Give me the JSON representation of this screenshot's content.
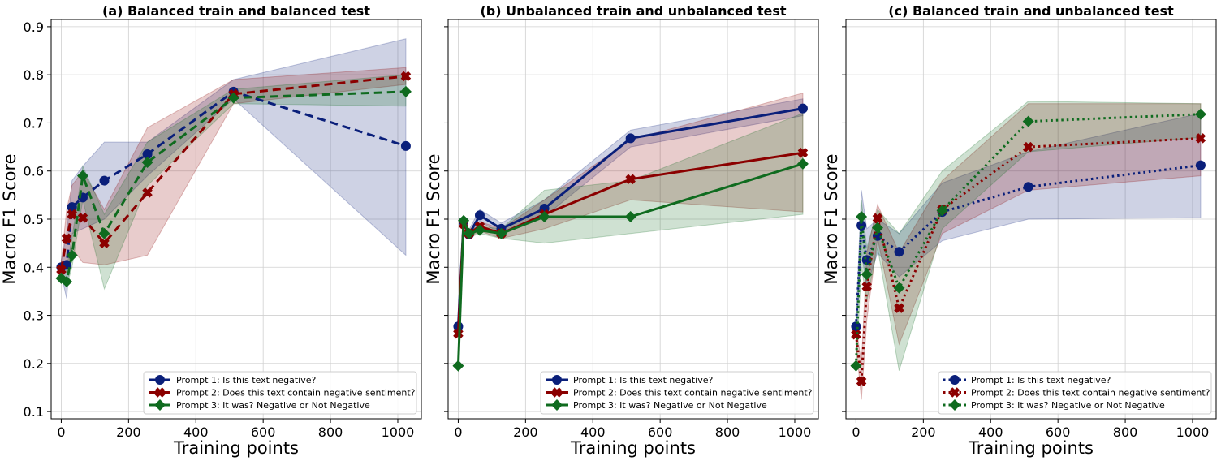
{
  "chart_data": [
    {
      "type": "line",
      "title": "(a) Balanced train and balanced test",
      "xlabel": "Training points",
      "ylabel": "Macro F1 Score",
      "line_style": "dashed",
      "xlim": [
        -30,
        1070
      ],
      "ylim": [
        0.085,
        0.915
      ],
      "xticks": [
        0,
        200,
        400,
        600,
        800,
        1000
      ],
      "yticks": [
        0.1,
        0.2,
        0.3,
        0.4,
        0.5,
        0.6,
        0.7,
        0.8,
        0.9
      ],
      "grid": true,
      "legend_position": "lower-right",
      "x": [
        0,
        16,
        32,
        64,
        128,
        256,
        512,
        1024
      ],
      "series": [
        {
          "name": "Prompt 1: Is this text negative?",
          "color": "#0a1f7a",
          "marker": "circle",
          "values": [
            0.4,
            0.405,
            0.525,
            0.545,
            0.58,
            0.635,
            0.765,
            0.652
          ],
          "lower": [
            0.385,
            0.335,
            0.47,
            0.48,
            0.5,
            0.59,
            0.75,
            0.425
          ],
          "upper": [
            0.415,
            0.47,
            0.58,
            0.61,
            0.66,
            0.66,
            0.79,
            0.875
          ]
        },
        {
          "name": "Prompt 2: Does this text contain negative sentiment?",
          "color": "#8b0000",
          "marker": "x",
          "values": [
            0.395,
            0.46,
            0.51,
            0.503,
            0.45,
            0.555,
            0.76,
            0.797
          ],
          "lower": [
            0.385,
            0.39,
            0.44,
            0.41,
            0.405,
            0.425,
            0.74,
            0.78
          ],
          "upper": [
            0.41,
            0.52,
            0.57,
            0.6,
            0.52,
            0.69,
            0.79,
            0.815
          ]
        },
        {
          "name": "Prompt 3: It was? Negative or Not Negative",
          "color": "#0f6b1f",
          "marker": "diamond",
          "values": [
            0.377,
            0.37,
            0.425,
            0.59,
            0.47,
            0.618,
            0.752,
            0.765
          ],
          "lower": [
            0.37,
            0.36,
            0.4,
            0.54,
            0.355,
            0.57,
            0.74,
            0.735
          ],
          "upper": [
            0.39,
            0.4,
            0.46,
            0.61,
            0.51,
            0.66,
            0.77,
            0.8
          ]
        }
      ]
    },
    {
      "type": "line",
      "title": "(b) Unbalanced train and unbalanced test",
      "xlabel": "Training points",
      "ylabel": "Macro F1 Score",
      "line_style": "solid",
      "xlim": [
        -30,
        1070
      ],
      "ylim": [
        0.085,
        0.915
      ],
      "xticks": [
        0,
        200,
        400,
        600,
        800,
        1000
      ],
      "yticks": [
        0.1,
        0.2,
        0.3,
        0.4,
        0.5,
        0.6,
        0.7,
        0.8,
        0.9
      ],
      "grid": true,
      "legend_position": "lower-right",
      "x": [
        0,
        16,
        32,
        64,
        128,
        256,
        512,
        1024
      ],
      "series": [
        {
          "name": "Prompt 1: Is this text negative?",
          "color": "#0a1f7a",
          "marker": "circle",
          "values": [
            0.277,
            0.495,
            0.468,
            0.508,
            0.48,
            0.522,
            0.668,
            0.73
          ],
          "lower": [
            0.27,
            0.485,
            0.46,
            0.495,
            0.47,
            0.505,
            0.65,
            0.715
          ],
          "upper": [
            0.285,
            0.505,
            0.478,
            0.52,
            0.492,
            0.54,
            0.685,
            0.75
          ]
        },
        {
          "name": "Prompt 2: Does this text contain negative sentiment?",
          "color": "#8b0000",
          "marker": "x",
          "values": [
            0.262,
            0.49,
            0.47,
            0.485,
            0.47,
            0.51,
            0.583,
            0.638
          ],
          "lower": [
            0.255,
            0.48,
            0.462,
            0.475,
            0.46,
            0.48,
            0.54,
            0.515
          ],
          "upper": [
            0.27,
            0.5,
            0.478,
            0.495,
            0.48,
            0.54,
            0.665,
            0.762
          ]
        },
        {
          "name": "Prompt 3: It was? Negative or Not Negative",
          "color": "#0f6b1f",
          "marker": "diamond",
          "values": [
            0.195,
            0.497,
            0.47,
            0.477,
            0.47,
            0.505,
            0.505,
            0.615
          ],
          "lower": [
            0.19,
            0.49,
            0.462,
            0.47,
            0.46,
            0.45,
            0.47,
            0.51
          ],
          "upper": [
            0.2,
            0.505,
            0.478,
            0.485,
            0.48,
            0.56,
            0.58,
            0.72
          ]
        }
      ]
    },
    {
      "type": "line",
      "title": "(c) Balanced train and unbalanced test",
      "xlabel": "Training points",
      "ylabel": "Macro F1 Score",
      "line_style": "dotted",
      "xlim": [
        -30,
        1070
      ],
      "ylim": [
        0.085,
        0.915
      ],
      "xticks": [
        0,
        200,
        400,
        600,
        800,
        1000
      ],
      "yticks": [
        0.1,
        0.2,
        0.3,
        0.4,
        0.5,
        0.6,
        0.7,
        0.8,
        0.9
      ],
      "grid": true,
      "legend_position": "lower-right",
      "x": [
        0,
        16,
        32,
        64,
        128,
        256,
        512,
        1024
      ],
      "series": [
        {
          "name": "Prompt 1: Is this text negative?",
          "color": "#0a1f7a",
          "marker": "circle",
          "values": [
            0.277,
            0.487,
            0.415,
            0.465,
            0.432,
            0.515,
            0.567,
            0.612
          ],
          "lower": [
            0.265,
            0.43,
            0.36,
            0.43,
            0.38,
            0.455,
            0.5,
            0.503
          ],
          "upper": [
            0.29,
            0.56,
            0.48,
            0.5,
            0.47,
            0.575,
            0.64,
            0.72
          ]
        },
        {
          "name": "Prompt 2: Does this text contain negative sentiment?",
          "color": "#8b0000",
          "marker": "x",
          "values": [
            0.26,
            0.163,
            0.36,
            0.502,
            0.315,
            0.52,
            0.65,
            0.668
          ],
          "lower": [
            0.24,
            0.125,
            0.29,
            0.46,
            0.24,
            0.47,
            0.56,
            0.59
          ],
          "upper": [
            0.28,
            0.2,
            0.43,
            0.53,
            0.43,
            0.58,
            0.74,
            0.74
          ]
        },
        {
          "name": "Prompt 3: It was? Negative or Not Negative",
          "color": "#0f6b1f",
          "marker": "diamond",
          "values": [
            0.195,
            0.505,
            0.385,
            0.482,
            0.357,
            0.518,
            0.703,
            0.718
          ],
          "lower": [
            0.185,
            0.4,
            0.33,
            0.44,
            0.185,
            0.48,
            0.64,
            0.67
          ],
          "upper": [
            0.205,
            0.54,
            0.44,
            0.52,
            0.47,
            0.6,
            0.745,
            0.74
          ]
        }
      ]
    }
  ]
}
